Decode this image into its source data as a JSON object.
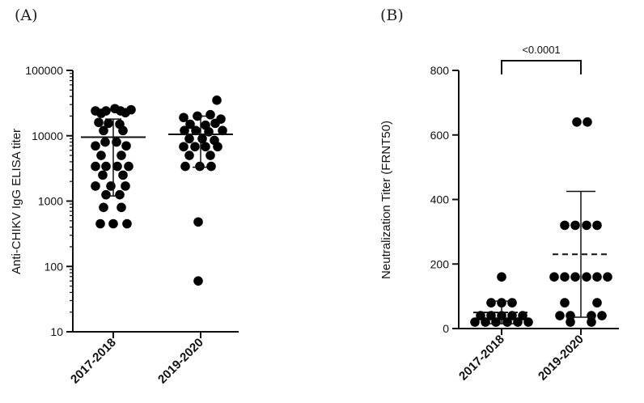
{
  "chart_data": [
    {
      "type": "scatter",
      "panel_label": "(A)",
      "ylabel": "Anti-CHIKV IgG ELISA titer",
      "yscale": "log",
      "ylim": [
        10,
        100000
      ],
      "yticks": [
        10,
        100,
        1000,
        10000,
        100000
      ],
      "categories": [
        "2017-2018",
        "2019-2020"
      ],
      "series": [
        {
          "points": [
            [
              -0.22,
              24000
            ],
            [
              -0.09,
              24000
            ],
            [
              0.09,
              24000
            ],
            [
              0.22,
              25000
            ],
            [
              -0.15,
              22000
            ],
            [
              0.02,
              26000
            ],
            [
              0.15,
              22500
            ],
            [
              -0.18,
              16000
            ],
            [
              -0.06,
              15500
            ],
            [
              0.08,
              15000
            ],
            [
              -0.12,
              12000
            ],
            [
              0.12,
              12000
            ],
            [
              -0.22,
              7000
            ],
            [
              -0.1,
              8000
            ],
            [
              0.04,
              8000
            ],
            [
              0.16,
              7000
            ],
            [
              -0.15,
              5000
            ],
            [
              0.1,
              5000
            ],
            [
              -0.22,
              3400
            ],
            [
              -0.09,
              3400
            ],
            [
              0.05,
              3400
            ],
            [
              0.19,
              3400
            ],
            [
              -0.13,
              2500
            ],
            [
              0.12,
              2500
            ],
            [
              -0.22,
              1700
            ],
            [
              -0.03,
              1700
            ],
            [
              0.15,
              1700
            ],
            [
              -0.09,
              1250
            ],
            [
              0.08,
              1250
            ],
            [
              -0.12,
              800
            ],
            [
              0.1,
              800
            ],
            [
              -0.16,
              450
            ],
            [
              0.0,
              450
            ],
            [
              0.17,
              450
            ]
          ],
          "mean": 9500,
          "error_upper": 18000,
          "error_lower": 1200
        },
        {
          "points": [
            [
              0.2,
              35000
            ],
            [
              -0.21,
              19000
            ],
            [
              -0.04,
              20000
            ],
            [
              0.12,
              21000
            ],
            [
              0.25,
              18000
            ],
            [
              -0.13,
              15000
            ],
            [
              0.06,
              14500
            ],
            [
              0.18,
              15500
            ],
            [
              -0.2,
              12000
            ],
            [
              -0.06,
              12000
            ],
            [
              0.1,
              11500
            ],
            [
              0.27,
              12000
            ],
            [
              -0.14,
              9000
            ],
            [
              0.02,
              9000
            ],
            [
              0.17,
              8500
            ],
            [
              -0.21,
              6800
            ],
            [
              -0.07,
              6800
            ],
            [
              0.06,
              6800
            ],
            [
              0.21,
              6800
            ],
            [
              -0.14,
              5000
            ],
            [
              0.12,
              5000
            ],
            [
              -0.19,
              3400
            ],
            [
              -0.01,
              3400
            ],
            [
              0.13,
              3400
            ],
            [
              -0.03,
              480
            ],
            [
              -0.03,
              60
            ]
          ],
          "mean": 10500,
          "error_upper": 20000,
          "error_lower": 3300
        }
      ]
    },
    {
      "type": "scatter",
      "panel_label": "(B)",
      "ylabel": "Neutralization Titer (FRNT50)",
      "ylim": [
        0,
        800
      ],
      "yticks": [
        0,
        200,
        400,
        600,
        800
      ],
      "categories": [
        "2017-2018",
        "2019-2020"
      ],
      "series": [
        {
          "points": [
            [
              0.0,
              160
            ],
            [
              -0.13,
              80
            ],
            [
              0.0,
              80
            ],
            [
              0.13,
              80
            ],
            [
              -0.26,
              40
            ],
            [
              -0.13,
              40
            ],
            [
              0.0,
              40
            ],
            [
              0.13,
              40
            ],
            [
              0.26,
              40
            ],
            [
              -0.33,
              20
            ],
            [
              -0.2,
              20
            ],
            [
              -0.07,
              20
            ],
            [
              0.07,
              20
            ],
            [
              0.2,
              20
            ],
            [
              0.33,
              20
            ]
          ],
          "mean": 50,
          "error_upper": 85,
          "error_lower": 15
        },
        {
          "points": [
            [
              -0.05,
              640
            ],
            [
              0.08,
              640
            ],
            [
              -0.2,
              320
            ],
            [
              -0.07,
              320
            ],
            [
              0.07,
              320
            ],
            [
              0.2,
              320
            ],
            [
              -0.33,
              160
            ],
            [
              -0.2,
              160
            ],
            [
              -0.07,
              160
            ],
            [
              0.07,
              160
            ],
            [
              0.2,
              160
            ],
            [
              0.33,
              160
            ],
            [
              -0.2,
              80
            ],
            [
              0.2,
              80
            ],
            [
              -0.26,
              40
            ],
            [
              -0.13,
              40
            ],
            [
              0.13,
              40
            ],
            [
              0.26,
              40
            ],
            [
              -0.13,
              20
            ],
            [
              0.13,
              20
            ]
          ],
          "mean": 230,
          "error_upper": 425,
          "error_lower": 35
        }
      ],
      "comparison": {
        "between": [
          "2017-2018",
          "2019-2020"
        ],
        "label": "<0.0001"
      }
    }
  ]
}
